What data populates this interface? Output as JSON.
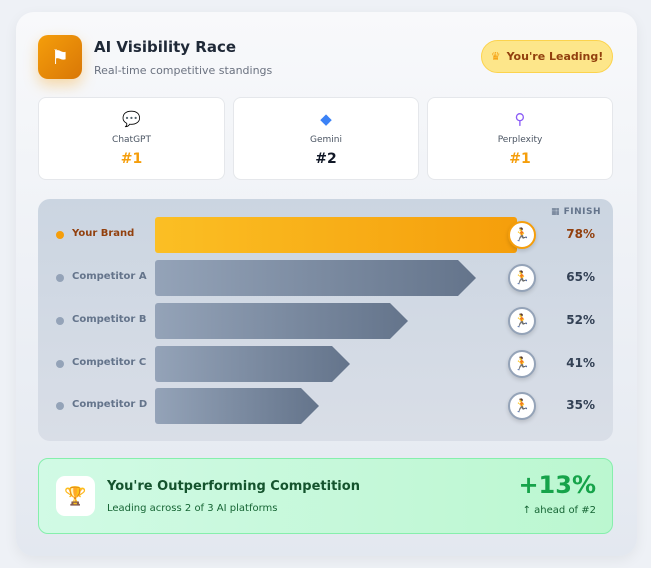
{
  "header": {
    "title": "AI Visibility Race",
    "subtitle": "Real-time competitive standings",
    "badge": "You're Leading!",
    "badge_icon": "crown-icon",
    "logo_icon": "checkered-flag-icon"
  },
  "platforms": [
    {
      "name": "ChatGPT",
      "rank": "#1",
      "icon": "chat-bubble-icon",
      "color": "#f59e0b"
    },
    {
      "name": "Gemini",
      "rank": "#2",
      "icon": "gem-icon",
      "color": "#111827"
    },
    {
      "name": "Perplexity",
      "rank": "#1",
      "icon": "search-icon",
      "color": "#f59e0b"
    }
  ],
  "race": {
    "finish": "FINISH",
    "rows": [
      {
        "name": "Your Brand",
        "pct": 78,
        "label": "78%"
      },
      {
        "name": "Competitor A",
        "pct": 65,
        "label": "65%"
      },
      {
        "name": "Competitor B",
        "pct": 52,
        "label": "52%"
      },
      {
        "name": "Competitor C",
        "pct": 41,
        "label": "41%"
      },
      {
        "name": "Competitor D",
        "pct": 35,
        "label": "35%"
      }
    ]
  },
  "summary": {
    "title": "You're Outperforming Competition",
    "subtitle": "Leading across 2 of 3 AI platforms",
    "delta": "+13%",
    "delta_note": "↑ ahead of #2"
  }
}
